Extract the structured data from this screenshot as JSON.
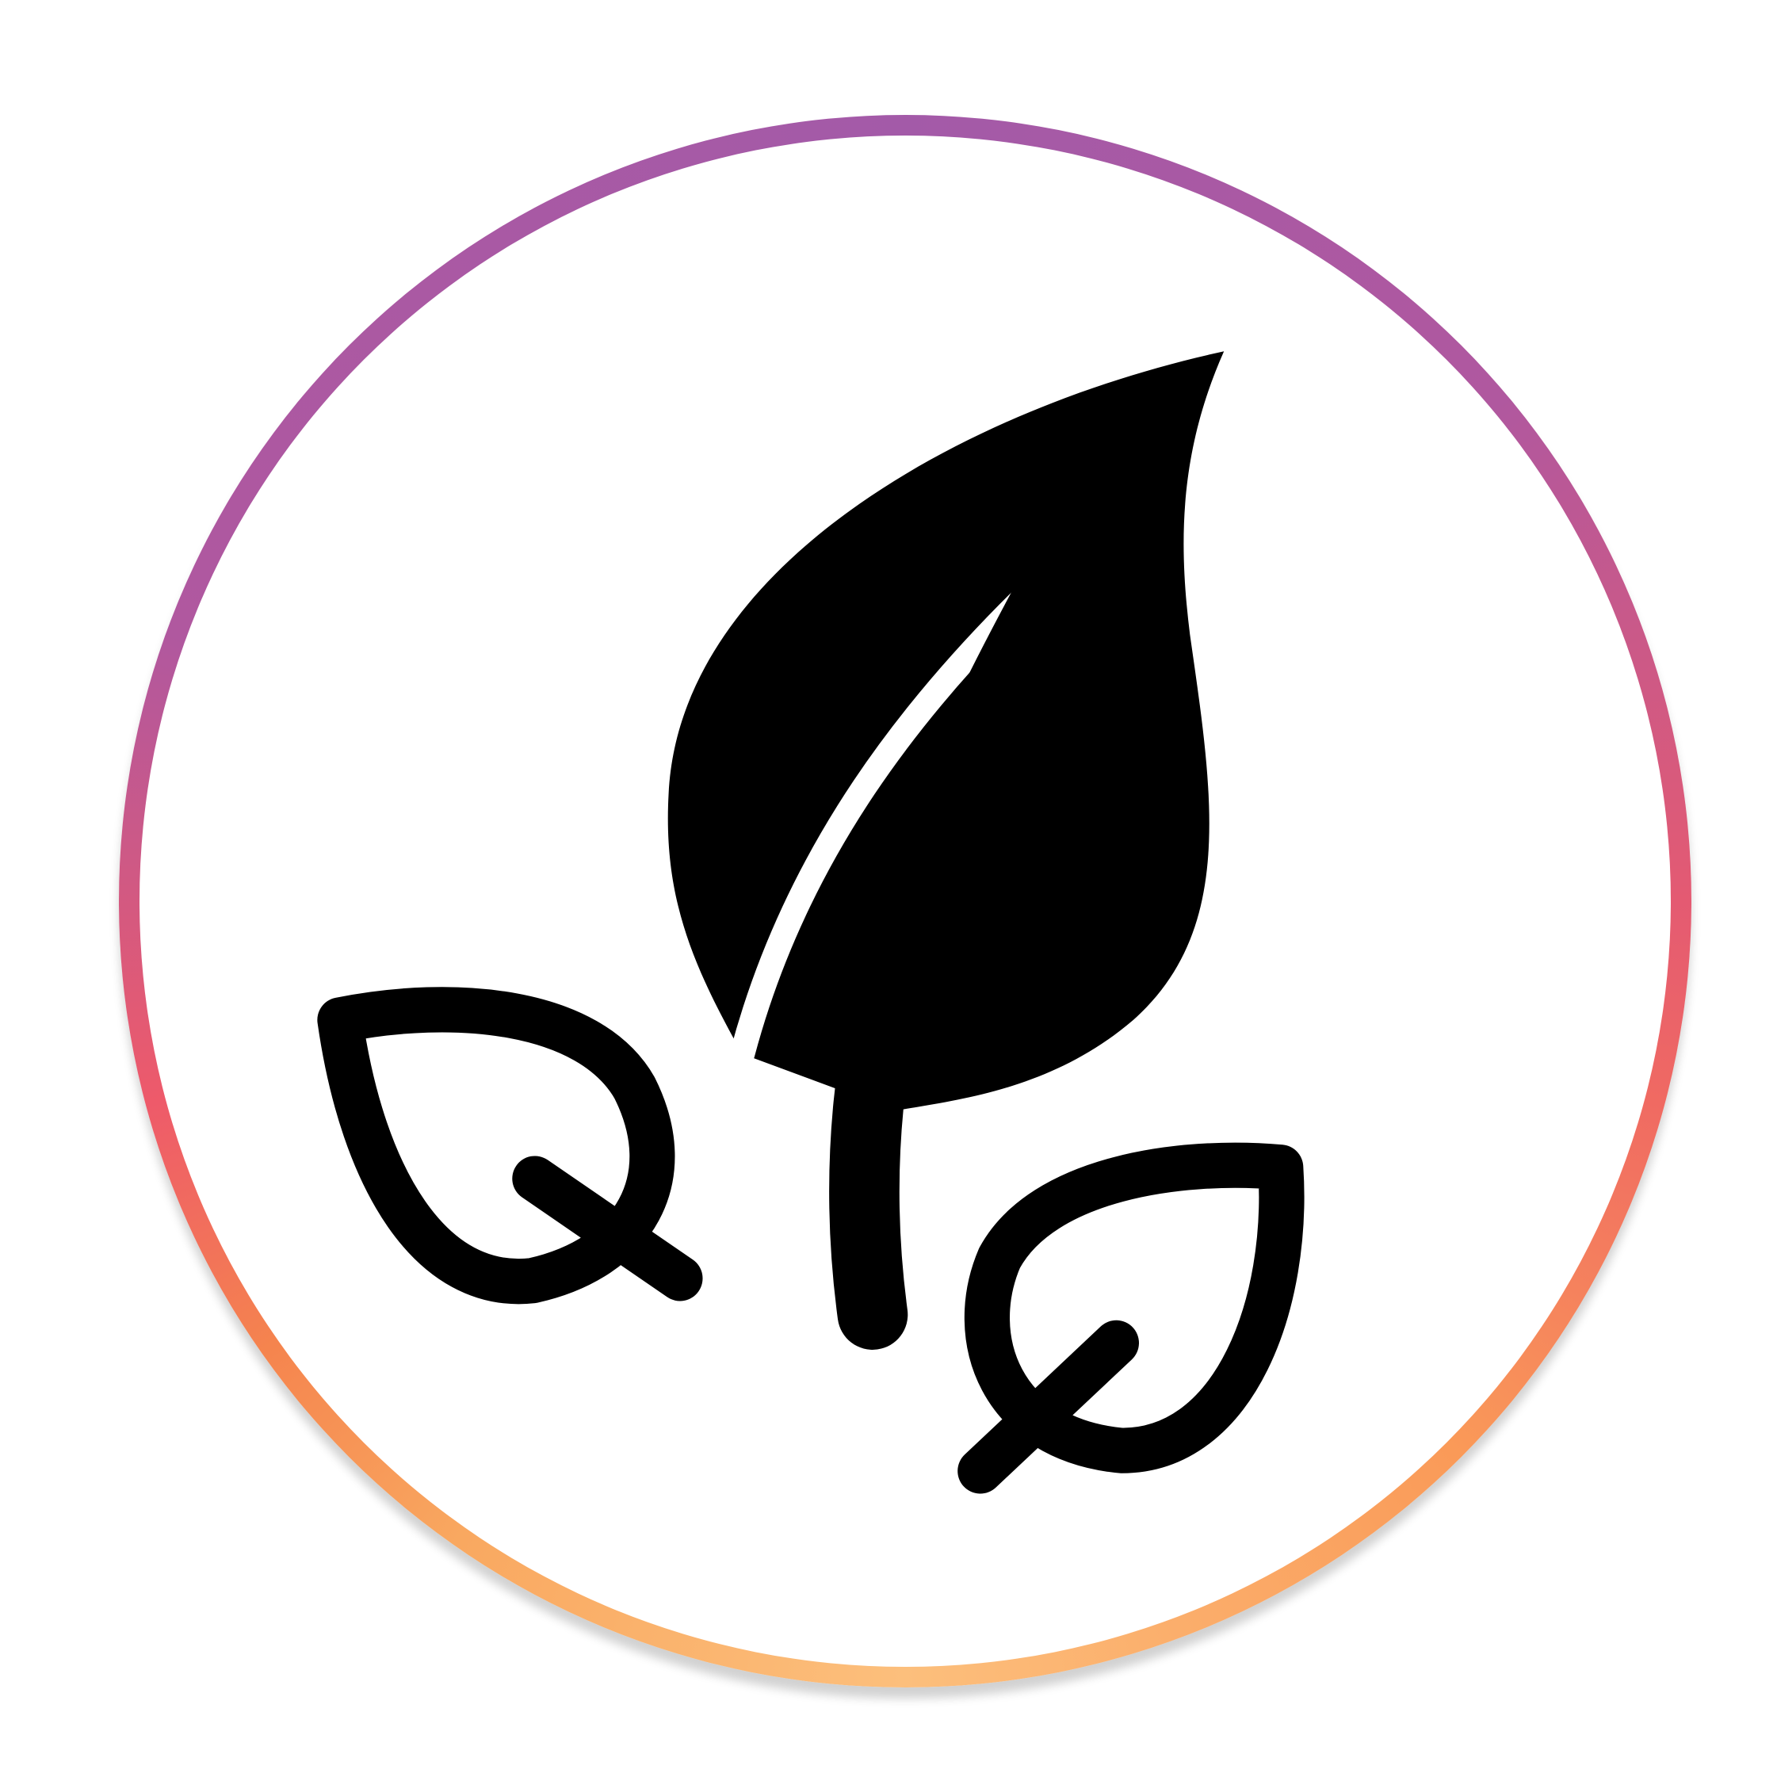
{
  "icon": {
    "name": "leaves-icon",
    "colors": {
      "ring_top": "#a35aa8",
      "ring_right": "#f06a62",
      "ring_bottom": "#fcbf7c",
      "glyph": "#000000",
      "background": "#ffffff"
    }
  }
}
